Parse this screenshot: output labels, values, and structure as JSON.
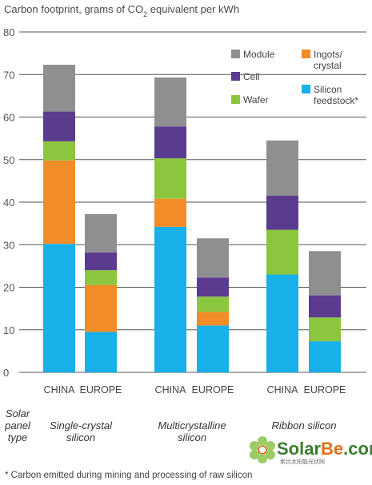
{
  "chart_data": {
    "type": "bar",
    "stacked": true,
    "title": "Carbon footprint, grams of CO₂ equivalent per kWh",
    "ylim": [
      0,
      80
    ],
    "yticks": [
      "0",
      "10",
      "20",
      "30",
      "40",
      "50",
      "60",
      "70",
      "80"
    ],
    "grid": true,
    "legend_position": "top-right",
    "categories": [
      "CHINA",
      "EUROPE",
      "CHINA",
      "EUROPE",
      "CHINA",
      "EUROPE"
    ],
    "groups": [
      {
        "label_lines": [
          "Single-crystal",
          "silicon"
        ],
        "categories": [
          0,
          1
        ]
      },
      {
        "label_lines": [
          "Multicrystalline",
          "silicon"
        ],
        "categories": [
          2,
          3
        ]
      },
      {
        "label_lines": [
          "Ribbon silicon"
        ],
        "categories": [
          4,
          5
        ]
      }
    ],
    "group_axis_label_lines": [
      "Solar",
      "panel",
      "type"
    ],
    "series": [
      {
        "name": "Silicon feedstock*",
        "legend_lines": [
          "Silicon",
          "feedstock*"
        ],
        "color": "#17b0e8",
        "values": [
          30.2,
          9.5,
          34.2,
          11.0,
          23.0,
          7.3
        ]
      },
      {
        "name": "Ingots/ crystal",
        "legend_lines": [
          "Ingots/",
          "crystal"
        ],
        "color": "#f28c28",
        "values": [
          19.6,
          11.0,
          6.6,
          3.2,
          0,
          0
        ]
      },
      {
        "name": "Wafer",
        "legend_lines": [
          "Wafer"
        ],
        "color": "#8cc63f",
        "values": [
          4.5,
          3.5,
          9.5,
          3.6,
          10.5,
          5.6
        ]
      },
      {
        "name": "Cell",
        "legend_lines": [
          "Cell"
        ],
        "color": "#5a3b8e",
        "values": [
          7.0,
          4.2,
          7.5,
          4.5,
          8.0,
          5.2
        ]
      },
      {
        "name": "Module",
        "legend_lines": [
          "Module"
        ],
        "color": "#8f8f91",
        "values": [
          11.0,
          9.0,
          11.5,
          9.2,
          13.0,
          10.4
        ]
      }
    ],
    "footnote": "* Carbon emitted during mining and processing of raw silicon"
  },
  "watermark": {
    "brand_main": "Solar",
    "brand_accent": "Be",
    "brand_suffix": ".com",
    "tagline": "索比太阳能光伏网",
    "colors": {
      "main": "#3a7d2c",
      "accent": "#e2701c",
      "suffix": "#3a7d2c"
    }
  }
}
